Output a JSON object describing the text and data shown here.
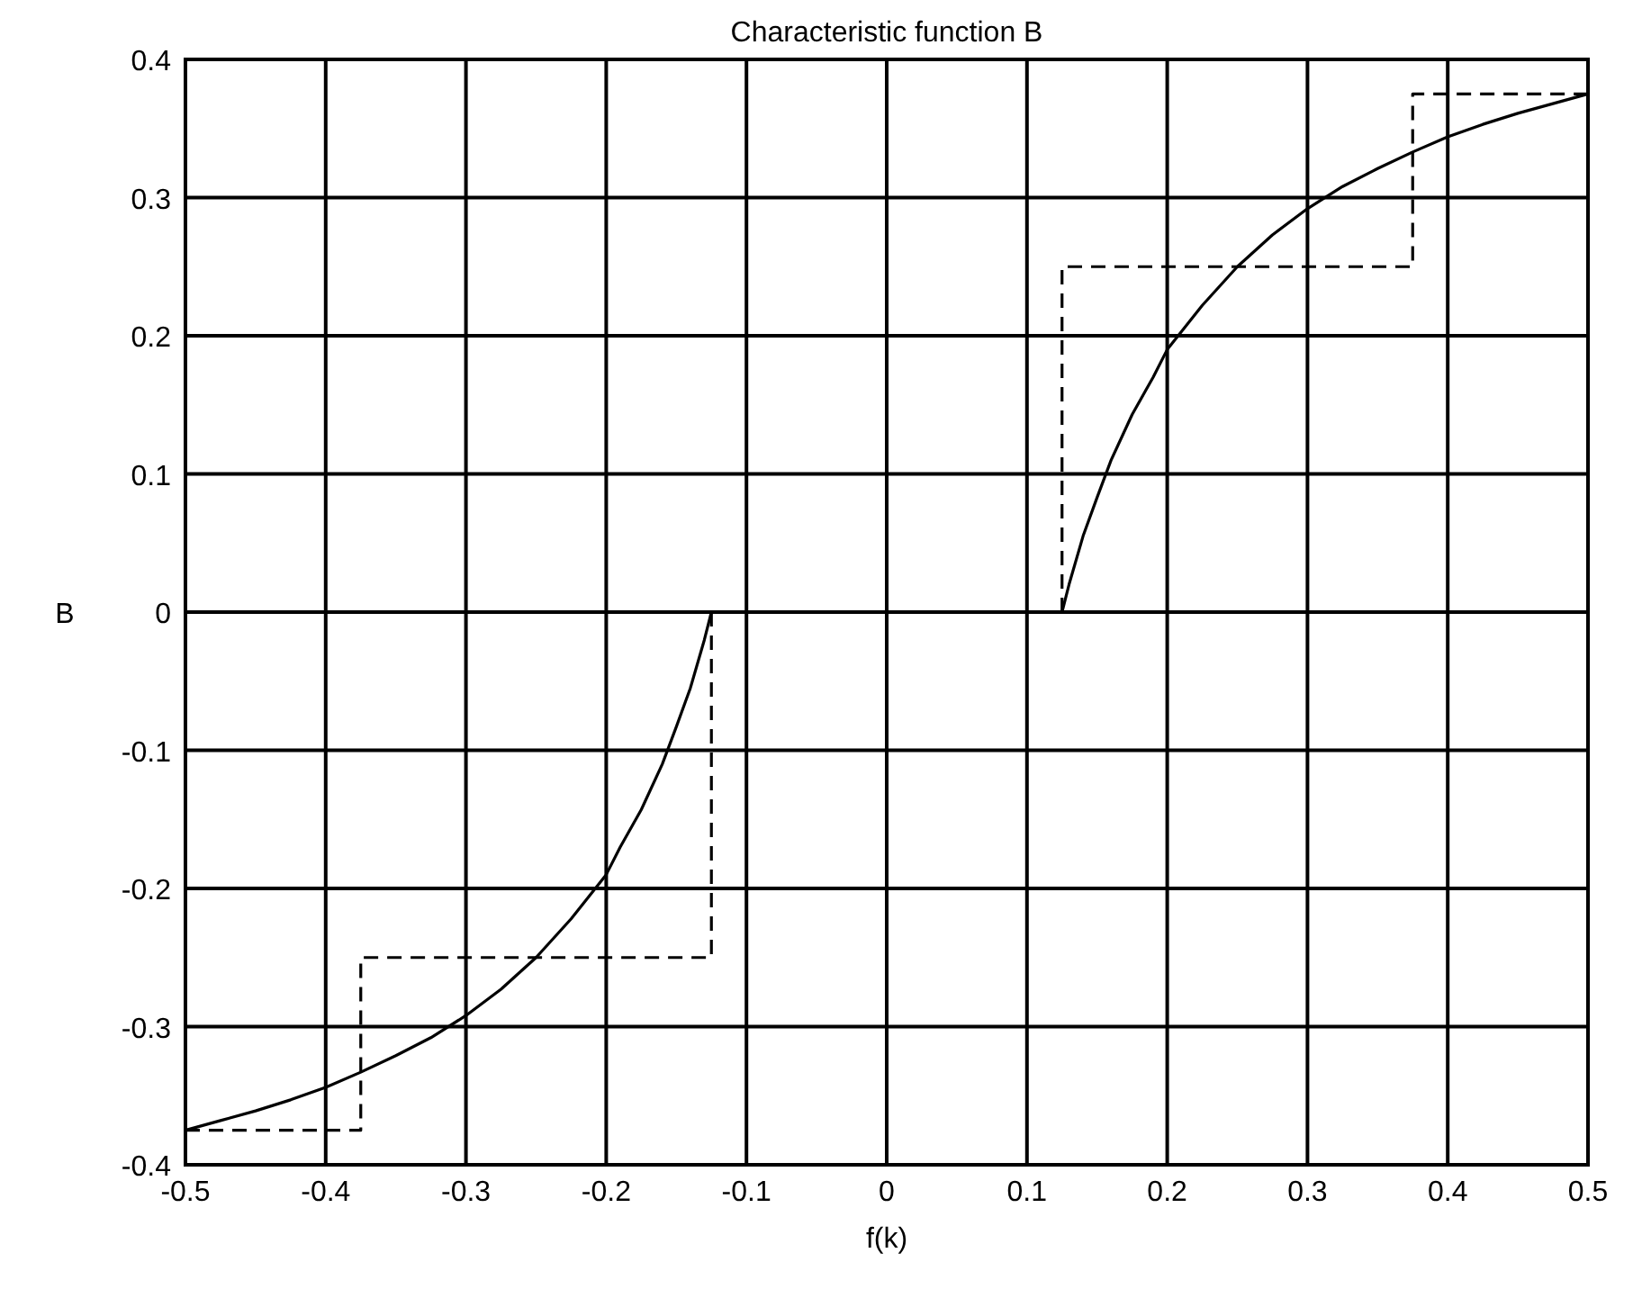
{
  "chart_data": {
    "type": "line",
    "title": "Characteristic function B",
    "xlabel": "f(k)",
    "ylabel": "B",
    "xlim": [
      -0.5,
      0.5
    ],
    "ylim": [
      -0.4,
      0.4
    ],
    "xticks": [
      -0.5,
      -0.4,
      -0.3,
      -0.2,
      -0.1,
      0,
      0.1,
      0.2,
      0.3,
      0.4,
      0.5
    ],
    "yticks": [
      -0.4,
      -0.3,
      -0.2,
      -0.1,
      0,
      0.1,
      0.2,
      0.3,
      0.4
    ],
    "grid": true,
    "marker": "none",
    "series": [
      {
        "color": "#000000",
        "line_style": "solid",
        "x": [
          -0.5,
          -0.475,
          -0.45,
          -0.425,
          -0.4,
          -0.375,
          -0.35,
          -0.325,
          -0.3,
          -0.275,
          -0.25,
          -0.225,
          -0.2,
          -0.19,
          -0.175,
          -0.16,
          -0.15,
          -0.14,
          -0.13,
          -0.125,
          0,
          0.125,
          0.13,
          0.14,
          0.15,
          0.16,
          0.175,
          0.19,
          0.2,
          0.225,
          0.25,
          0.275,
          0.3,
          0.325,
          0.35,
          0.375,
          0.4,
          0.425,
          0.45,
          0.475,
          0.5
        ],
        "values": [
          -0.375,
          -0.368,
          -0.361,
          -0.353,
          -0.344,
          -0.333,
          -0.321,
          -0.308,
          -0.292,
          -0.273,
          -0.25,
          -0.222,
          -0.19,
          -0.17,
          -0.143,
          -0.11,
          -0.083,
          -0.055,
          -0.02,
          0,
          null,
          0,
          0.02,
          0.055,
          0.083,
          0.11,
          0.143,
          0.17,
          0.19,
          0.222,
          0.25,
          0.273,
          0.292,
          0.308,
          0.321,
          0.333,
          0.344,
          0.353,
          0.361,
          0.368,
          0.375
        ]
      },
      {
        "type": "step",
        "color": "#000000",
        "line_style": "dashed",
        "x": [
          -0.5,
          -0.375,
          -0.125,
          -0.125,
          0,
          0.125,
          0.125,
          0.375,
          0.5
        ],
        "values": [
          -0.375,
          -0.25,
          0,
          0,
          null,
          0,
          0.25,
          0.375,
          0.375
        ]
      }
    ]
  }
}
